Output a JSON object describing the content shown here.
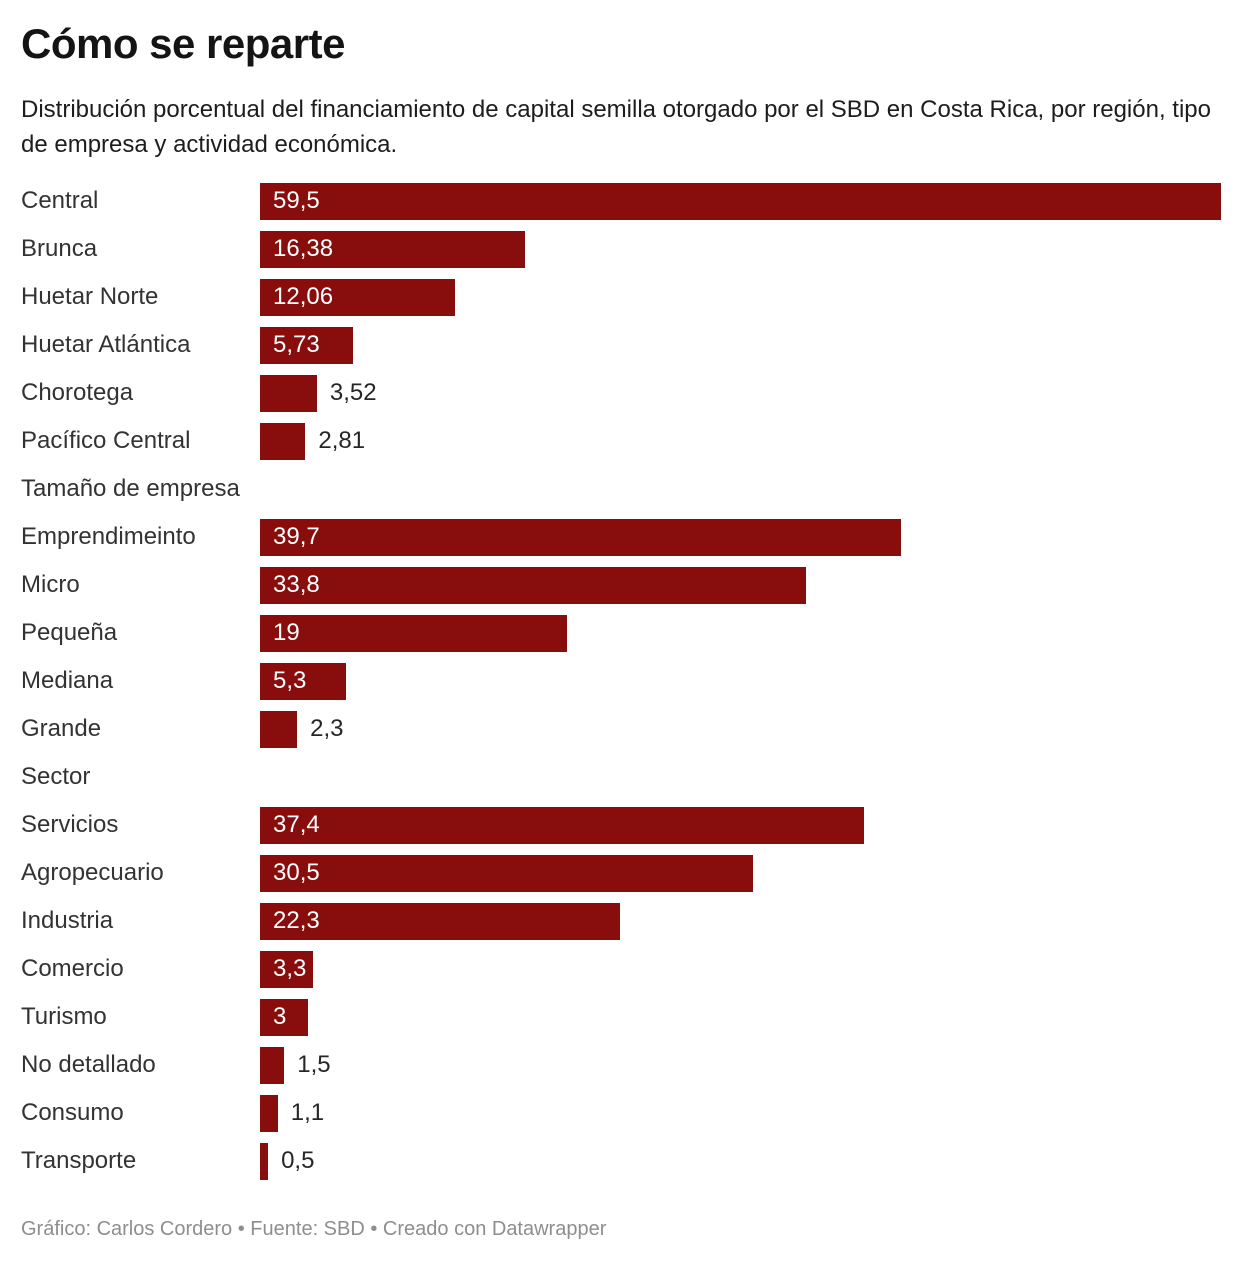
{
  "header": {
    "title": "Cómo se reparte",
    "subtitle": "Distribución porcentual del financiamiento de capital semilla otorgado por el SBD en Costa Rica, por región, tipo de empresa y actividad económica."
  },
  "footer": {
    "byline": "Gráfico: Carlos Cordero • Fuente: SBD • Creado con Datawrapper"
  },
  "colors": {
    "bar": "#870e0d",
    "label_inside": "#ffffff",
    "label_outside": "#262626",
    "category_label": "#333333",
    "footer_text": "#8e8e8e"
  },
  "chart_data": {
    "type": "bar",
    "orientation": "horizontal",
    "title": "Cómo se reparte",
    "xlabel": "",
    "ylabel": "",
    "xlim": [
      0,
      59.5
    ],
    "grid": false,
    "legend": false,
    "value_labels": "on bars, comma decimal separator",
    "groups": [
      {
        "header": null,
        "items": [
          {
            "label": "Central",
            "value": 59.5,
            "value_label": "59,5",
            "label_position": "inside"
          },
          {
            "label": "Brunca",
            "value": 16.38,
            "value_label": "16,38",
            "label_position": "inside"
          },
          {
            "label": "Huetar Norte",
            "value": 12.06,
            "value_label": "12,06",
            "label_position": "inside"
          },
          {
            "label": "Huetar Atlántica",
            "value": 5.73,
            "value_label": "5,73",
            "label_position": "inside"
          },
          {
            "label": "Chorotega",
            "value": 3.52,
            "value_label": "3,52",
            "label_position": "outside"
          },
          {
            "label": "Pacífico Central",
            "value": 2.81,
            "value_label": "2,81",
            "label_position": "outside"
          }
        ]
      },
      {
        "header": "Tamaño de empresa",
        "items": [
          {
            "label": "Emprendimeinto",
            "value": 39.7,
            "value_label": "39,7",
            "label_position": "inside"
          },
          {
            "label": "Micro",
            "value": 33.8,
            "value_label": "33,8",
            "label_position": "inside"
          },
          {
            "label": "Pequeña",
            "value": 19,
            "value_label": "19",
            "label_position": "inside"
          },
          {
            "label": "Mediana",
            "value": 5.3,
            "value_label": "5,3",
            "label_position": "inside"
          },
          {
            "label": "Grande",
            "value": 2.3,
            "value_label": "2,3",
            "label_position": "outside"
          }
        ]
      },
      {
        "header": "Sector",
        "items": [
          {
            "label": "Servicios",
            "value": 37.4,
            "value_label": "37,4",
            "label_position": "inside"
          },
          {
            "label": "Agropecuario",
            "value": 30.5,
            "value_label": "30,5",
            "label_position": "inside"
          },
          {
            "label": "Industria",
            "value": 22.3,
            "value_label": "22,3",
            "label_position": "inside"
          },
          {
            "label": "Comercio",
            "value": 3.3,
            "value_label": "3,3",
            "label_position": "inside"
          },
          {
            "label": "Turismo",
            "value": 3,
            "value_label": "3",
            "label_position": "inside"
          },
          {
            "label": "No detallado",
            "value": 1.5,
            "value_label": "1,5",
            "label_position": "outside"
          },
          {
            "label": "Consumo",
            "value": 1.1,
            "value_label": "1,1",
            "label_position": "outside"
          },
          {
            "label": "Transporte",
            "value": 0.5,
            "value_label": "0,5",
            "label_position": "outside"
          }
        ]
      }
    ]
  }
}
